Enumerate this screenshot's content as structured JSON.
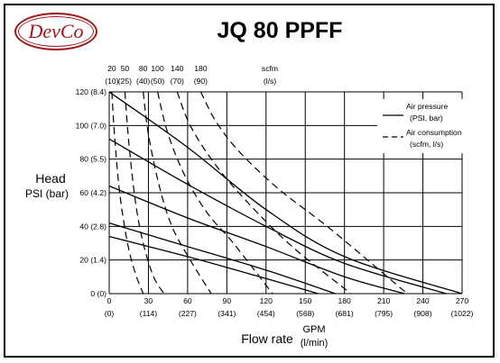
{
  "logo_text": "DevCo",
  "chart_data": {
    "type": "line",
    "title": "JQ 80 PPFF",
    "ylabel": "Head",
    "ylabel_unit": "PSI (bar)",
    "xlabel": "Flow rate",
    "xlabel_unit_top": "GPM",
    "xlabel_unit_bottom": "(l/min)",
    "xlim": [
      0,
      270
    ],
    "ylim": [
      0,
      120
    ],
    "x_ticks": [
      0,
      30,
      60,
      90,
      120,
      150,
      180,
      210,
      240,
      270
    ],
    "x_tick_labels": [
      "0",
      "30",
      "60",
      "90",
      "120",
      "150",
      "180",
      "210",
      "240",
      "270"
    ],
    "x_tick_labels_secondary": [
      "(0)",
      "(114)",
      "(227)",
      "(341)",
      "(454)",
      "(568)",
      "(681)",
      "(795)",
      "(908)",
      "(1022)"
    ],
    "y_ticks": [
      0,
      20,
      40,
      60,
      80,
      100,
      120
    ],
    "y_tick_labels": [
      "0 (0)",
      "20 (1.4)",
      "40 (2.8)",
      "60 (4.2)",
      "80 (5.5)",
      "100 (7.0)",
      "120 (8.4)"
    ],
    "air_label_top": "scfm",
    "air_label_bottom": "(l/s)",
    "air_ticks_scfm": [
      "20",
      "50",
      "80",
      "100",
      "140",
      "180"
    ],
    "air_ticks_ls": [
      "(10)",
      "(25)",
      "(40)",
      "(50)",
      "(70)",
      "(90)"
    ],
    "air_ticks_x": [
      2,
      12,
      26,
      37,
      52,
      70
    ],
    "legend_position": "top-right",
    "legend": [
      {
        "label": "Air pressure",
        "sub": "(PSI, bar)",
        "style": "solid"
      },
      {
        "label": "Air consumption",
        "sub": "(scfm, l/s)",
        "style": "dashed"
      }
    ],
    "grid": true,
    "pressure_curves": [
      {
        "points": [
          [
            0,
            120
          ],
          [
            60,
            87
          ],
          [
            120,
            50
          ],
          [
            180,
            22
          ],
          [
            270,
            0
          ]
        ]
      },
      {
        "points": [
          [
            0,
            92
          ],
          [
            60,
            65
          ],
          [
            120,
            40
          ],
          [
            180,
            18
          ],
          [
            258,
            0
          ]
        ]
      },
      {
        "points": [
          [
            0,
            64
          ],
          [
            60,
            45
          ],
          [
            120,
            28
          ],
          [
            180,
            10
          ],
          [
            226,
            0
          ]
        ]
      },
      {
        "points": [
          [
            0,
            42
          ],
          [
            60,
            28
          ],
          [
            120,
            14
          ],
          [
            173,
            0
          ]
        ]
      },
      {
        "points": [
          [
            0,
            34
          ],
          [
            60,
            22
          ],
          [
            120,
            9
          ],
          [
            160,
            0
          ]
        ]
      }
    ],
    "air_curves": [
      {
        "points": [
          [
            2,
            120
          ],
          [
            4,
            95
          ],
          [
            8,
            60
          ],
          [
            14,
            30
          ],
          [
            20,
            12
          ],
          [
            26,
            0
          ]
        ]
      },
      {
        "points": [
          [
            12,
            120
          ],
          [
            15,
            90
          ],
          [
            20,
            55
          ],
          [
            26,
            30
          ],
          [
            34,
            10
          ],
          [
            42,
            0
          ]
        ]
      },
      {
        "points": [
          [
            26,
            120
          ],
          [
            30,
            95
          ],
          [
            38,
            65
          ],
          [
            48,
            40
          ],
          [
            62,
            20
          ],
          [
            78,
            0
          ]
        ]
      },
      {
        "points": [
          [
            37,
            120
          ],
          [
            45,
            95
          ],
          [
            58,
            70
          ],
          [
            75,
            48
          ],
          [
            95,
            30
          ],
          [
            125,
            0
          ]
        ]
      },
      {
        "points": [
          [
            52,
            120
          ],
          [
            62,
            100
          ],
          [
            80,
            78
          ],
          [
            105,
            55
          ],
          [
            140,
            28
          ],
          [
            185,
            0
          ]
        ]
      },
      {
        "points": [
          [
            70,
            120
          ],
          [
            82,
            102
          ],
          [
            100,
            84
          ],
          [
            130,
            62
          ],
          [
            170,
            38
          ],
          [
            228,
            0
          ]
        ]
      }
    ]
  }
}
